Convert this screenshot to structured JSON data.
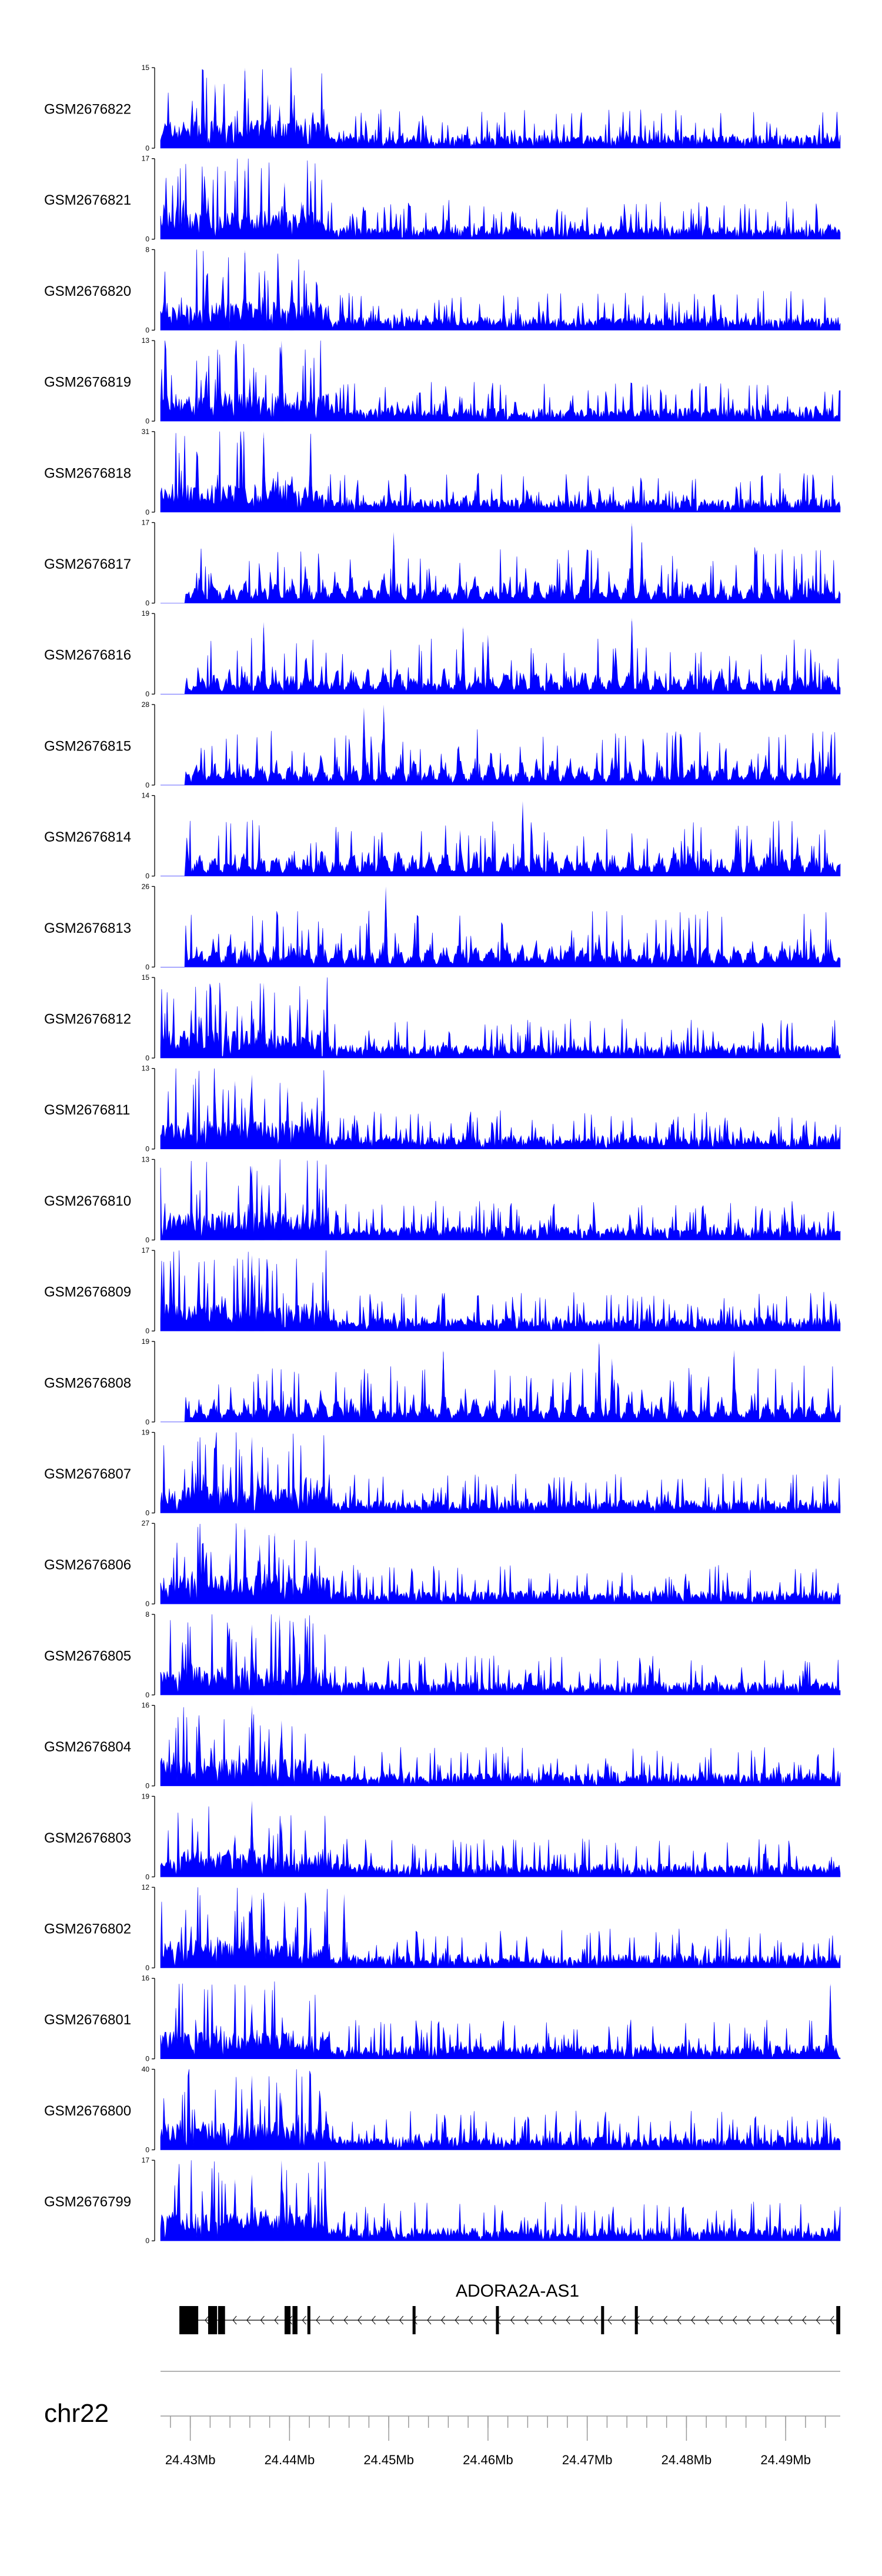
{
  "chart_data": {
    "type": "area",
    "title": "",
    "chromosome": "chr22",
    "xlim": [
      24.427,
      24.4955
    ],
    "x_unit": "Mb",
    "x_ticks": [
      24.43,
      24.44,
      24.45,
      24.46,
      24.47,
      24.48,
      24.49
    ],
    "x_tick_labels": [
      "24.43Mb",
      "24.44Mb",
      "24.45Mb",
      "24.46Mb",
      "24.47Mb",
      "24.48Mb",
      "24.49Mb"
    ],
    "minor_tick_step": 0.002,
    "fill_color": "#0000ff",
    "series": [
      {
        "name": "GSM2676822",
        "ymax": 15,
        "ymin": 0,
        "style": "dense",
        "peaks": [
          [
            24.4355,
            15
          ],
          [
            24.4325,
            12
          ],
          [
            24.4378,
            10
          ],
          [
            24.4302,
            9
          ],
          [
            24.439,
            8
          ]
        ]
      },
      {
        "name": "GSM2676821",
        "ymax": 17,
        "ymin": 0,
        "style": "dense",
        "peaks": [
          [
            24.4355,
            15
          ],
          [
            24.4395,
            12
          ],
          [
            24.4318,
            9
          ],
          [
            24.4412,
            8
          ]
        ]
      },
      {
        "name": "GSM2676820",
        "ymax": 8,
        "ymin": 0,
        "style": "dense",
        "peaks": [
          [
            24.4355,
            8
          ],
          [
            24.4375,
            6
          ],
          [
            24.4402,
            5
          ]
        ]
      },
      {
        "name": "GSM2676819",
        "ymax": 13,
        "ymin": 0,
        "style": "dense",
        "peaks": [
          [
            24.4392,
            13
          ],
          [
            24.436,
            7
          ],
          [
            24.4335,
            5
          ]
        ]
      },
      {
        "name": "GSM2676818",
        "ymax": 31,
        "ymin": 0,
        "style": "dense",
        "peaks": [
          [
            24.4374,
            31
          ],
          [
            24.4386,
            12
          ],
          [
            24.4352,
            8
          ]
        ]
      },
      {
        "name": "GSM2676817",
        "ymax": 17,
        "ymin": 0,
        "style": "sparse",
        "peaks": [
          [
            24.4745,
            17
          ],
          [
            24.4505,
            15
          ],
          [
            24.4755,
            13
          ]
        ]
      },
      {
        "name": "GSM2676816",
        "ymax": 19,
        "ymin": 0,
        "style": "sparse",
        "peaks": [
          [
            24.4745,
            18
          ],
          [
            24.4374,
            17
          ],
          [
            24.4575,
            16
          ],
          [
            24.46,
            14
          ]
        ]
      },
      {
        "name": "GSM2676815",
        "ymax": 28,
        "ymin": 0,
        "style": "sparse",
        "peaks": [
          [
            24.4495,
            28
          ],
          [
            24.4475,
            27
          ],
          [
            24.4795,
            18
          ]
        ]
      },
      {
        "name": "GSM2676814",
        "ymax": 14,
        "ymin": 0,
        "style": "sparse",
        "peaks": [
          [
            24.4635,
            13
          ],
          [
            24.4572,
            8
          ],
          [
            24.4912,
            7
          ]
        ]
      },
      {
        "name": "GSM2676813",
        "ymax": 26,
        "ymin": 0,
        "style": "sparse",
        "peaks": [
          [
            24.4497,
            26
          ],
          [
            24.4785,
            13
          ],
          [
            24.4478,
            8
          ]
        ]
      },
      {
        "name": "GSM2676812",
        "ymax": 15,
        "ymin": 0,
        "style": "dense",
        "peaks": [
          [
            24.4374,
            14
          ],
          [
            24.4362,
            10
          ],
          [
            24.4352,
            8
          ]
        ]
      },
      {
        "name": "GSM2676811",
        "ymax": 13,
        "ymin": 0,
        "style": "dense",
        "peaks": [
          [
            24.4362,
            12
          ],
          [
            24.4345,
            11
          ],
          [
            24.4398,
            10
          ],
          [
            24.4325,
            9
          ]
        ]
      },
      {
        "name": "GSM2676810",
        "ymax": 13,
        "ymin": 0,
        "style": "dense",
        "peaks": [
          [
            24.4362,
            12
          ],
          [
            24.4372,
            9
          ],
          [
            24.439,
            6
          ]
        ]
      },
      {
        "name": "GSM2676809",
        "ymax": 17,
        "ymin": 0,
        "style": "dense",
        "peaks": [
          [
            24.4362,
            16
          ],
          [
            24.4372,
            10
          ],
          [
            24.4348,
            9
          ]
        ]
      },
      {
        "name": "GSM2676808",
        "ymax": 19,
        "ymin": 0,
        "style": "sparse",
        "peaks": [
          [
            24.4712,
            19
          ],
          [
            24.4555,
            17
          ],
          [
            24.4848,
            17
          ],
          [
            24.4725,
            15
          ]
        ]
      },
      {
        "name": "GSM2676807",
        "ymax": 19,
        "ymin": 0,
        "style": "dense",
        "peaks": [
          [
            24.4362,
            18
          ],
          [
            24.4392,
            6
          ],
          [
            24.4368,
            10
          ]
        ]
      },
      {
        "name": "GSM2676806",
        "ymax": 27,
        "ymin": 0,
        "style": "dense",
        "peaks": [
          [
            24.4355,
            26
          ],
          [
            24.4385,
            24
          ],
          [
            24.437,
            20
          ],
          [
            24.434,
            17
          ]
        ]
      },
      {
        "name": "GSM2676805",
        "ymax": 8,
        "ymin": 0,
        "style": "dense",
        "peaks": [
          [
            24.439,
            8
          ],
          [
            24.4362,
            7
          ],
          [
            24.4405,
            6
          ]
        ]
      },
      {
        "name": "GSM2676804",
        "ymax": 16,
        "ymin": 0,
        "style": "dense",
        "peaks": [
          [
            24.4362,
            16
          ],
          [
            24.4392,
            13
          ],
          [
            24.4375,
            9
          ]
        ]
      },
      {
        "name": "GSM2676803",
        "ymax": 19,
        "ymin": 0,
        "style": "dense",
        "peaks": [
          [
            24.4362,
            18
          ],
          [
            24.4392,
            13
          ],
          [
            24.4345,
            10
          ]
        ]
      },
      {
        "name": "GSM2676802",
        "ymax": 12,
        "ymin": 0,
        "style": "dense",
        "peaks": [
          [
            24.4362,
            11
          ],
          [
            24.4455,
            11
          ],
          [
            24.4395,
            10
          ]
        ]
      },
      {
        "name": "GSM2676801",
        "ymax": 16,
        "ymin": 0,
        "style": "dense",
        "peaks": [
          [
            24.4945,
            15
          ],
          [
            24.4375,
            14
          ],
          [
            24.4362,
            11
          ]
        ]
      },
      {
        "name": "GSM2676800",
        "ymax": 40,
        "ymin": 0,
        "style": "dense",
        "peaks": [
          [
            24.4362,
            37
          ],
          [
            24.4392,
            26
          ],
          [
            24.4345,
            20
          ]
        ]
      },
      {
        "name": "GSM2676799",
        "ymax": 17,
        "ymin": 0,
        "style": "dense",
        "peaks": [
          [
            24.4392,
            17
          ],
          [
            24.4362,
            14
          ],
          [
            24.4345,
            13
          ]
        ]
      }
    ],
    "gene": {
      "name": "ADORA2A-AS1",
      "strand": "-",
      "start": 24.4289,
      "end": 24.4954,
      "exons": [
        [
          24.4289,
          24.4308
        ],
        [
          24.4318,
          24.4327
        ],
        [
          24.4328,
          24.4335
        ],
        [
          24.4395,
          24.4401
        ],
        [
          24.4403,
          24.4408
        ],
        [
          24.4418,
          24.4421
        ],
        [
          24.4524,
          24.4527
        ],
        [
          24.4608,
          24.4611
        ],
        [
          24.4714,
          24.4717
        ],
        [
          24.4748,
          24.4751
        ],
        [
          24.4951,
          24.4955
        ]
      ]
    }
  }
}
